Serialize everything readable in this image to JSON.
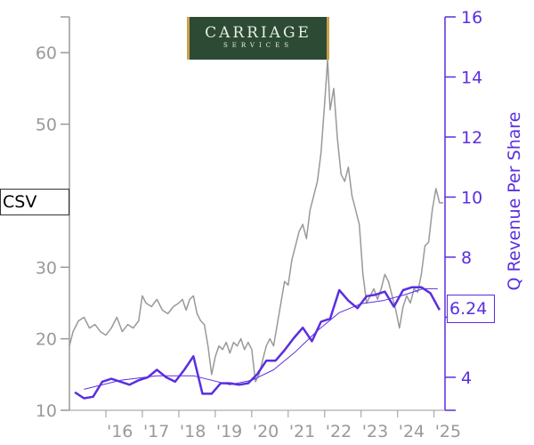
{
  "ticker": "CSV",
  "logo": {
    "main": "CARRIAGE",
    "sub": "SERVICES"
  },
  "last_value_label": "6.24",
  "colors": {
    "price": "#999999",
    "revenue": "#5b2ee0",
    "trend": "#5b2ee0",
    "left_axis": "#999999"
  },
  "chart_data": {
    "type": "line",
    "title": "",
    "left_axis": {
      "label": "",
      "ticks": [
        10,
        20,
        30,
        40,
        50,
        60
      ],
      "tick_labels": [
        "10",
        "20",
        "30",
        "",
        "50",
        "60"
      ],
      "range": [
        10,
        65
      ]
    },
    "right_axis": {
      "label": "Q Revenue Per Share",
      "ticks": [
        4,
        6,
        8,
        10,
        12,
        14,
        16
      ],
      "tick_labels": [
        "4",
        "",
        "8",
        "10",
        "12",
        "14",
        "16"
      ],
      "range": [
        2.9,
        16
      ]
    },
    "x_axis": {
      "tick_labels": [
        "'16",
        "'17",
        "'18",
        "'19",
        "'20",
        "'21",
        "'22",
        "'23",
        "'24",
        "'25"
      ],
      "tick_years": [
        2016,
        2017,
        2018,
        2019,
        2020,
        2021,
        2022,
        2023,
        2024,
        2025
      ],
      "range": [
        2015.0,
        2025.3
      ]
    },
    "series": [
      {
        "name": "Price",
        "axis": "left",
        "x": [
          2015.0,
          2015.1,
          2015.25,
          2015.4,
          2015.55,
          2015.7,
          2015.85,
          2016.0,
          2016.15,
          2016.3,
          2016.45,
          2016.6,
          2016.75,
          2016.9,
          2017.0,
          2017.1,
          2017.25,
          2017.4,
          2017.55,
          2017.7,
          2017.85,
          2018.0,
          2018.1,
          2018.2,
          2018.3,
          2018.4,
          2018.5,
          2018.6,
          2018.7,
          2018.8,
          2018.9,
          2019.0,
          2019.1,
          2019.2,
          2019.3,
          2019.4,
          2019.5,
          2019.6,
          2019.7,
          2019.8,
          2019.9,
          2020.0,
          2020.1,
          2020.2,
          2020.3,
          2020.4,
          2020.5,
          2020.6,
          2020.7,
          2020.8,
          2020.9,
          2021.0,
          2021.1,
          2021.2,
          2021.3,
          2021.4,
          2021.5,
          2021.6,
          2021.7,
          2021.8,
          2021.9,
          2022.0,
          2022.08,
          2022.15,
          2022.25,
          2022.35,
          2022.45,
          2022.55,
          2022.65,
          2022.75,
          2022.85,
          2022.95,
          2023.05,
          2023.15,
          2023.25,
          2023.35,
          2023.45,
          2023.55,
          2023.65,
          2023.75,
          2023.85,
          2023.95,
          2024.05,
          2024.15,
          2024.25,
          2024.35,
          2024.45,
          2024.55,
          2024.65,
          2024.75,
          2024.85,
          2024.95,
          2025.05,
          2025.15,
          2025.25
        ],
        "values": [
          19,
          21,
          22.5,
          23,
          21.5,
          22,
          21,
          20.5,
          21.5,
          23,
          21,
          22,
          21.5,
          22.5,
          26,
          25,
          24.5,
          25.5,
          24,
          23.5,
          24.5,
          25,
          25.5,
          24,
          25.5,
          26,
          23.5,
          22.5,
          22,
          19,
          15,
          17.5,
          19,
          18.5,
          19.5,
          18,
          19.5,
          19,
          20,
          18.5,
          19.5,
          18.5,
          14,
          15,
          17,
          19,
          20,
          19,
          22,
          25,
          28,
          27.5,
          31,
          33,
          35,
          36,
          34,
          38,
          40,
          42,
          46,
          53,
          59,
          52,
          55,
          48,
          43,
          42,
          44,
          40,
          38,
          36,
          29,
          25,
          26,
          27,
          25.5,
          27,
          29,
          28,
          26,
          24,
          21.5,
          24.5,
          26,
          25,
          27,
          26.5,
          29,
          33,
          33.5,
          38,
          41,
          39,
          39
        ]
      },
      {
        "name": "Q Revenue Per Share",
        "axis": "right",
        "x": [
          2015.15,
          2015.4,
          2015.65,
          2015.9,
          2016.15,
          2016.4,
          2016.65,
          2016.9,
          2017.15,
          2017.4,
          2017.65,
          2017.9,
          2018.15,
          2018.4,
          2018.65,
          2018.9,
          2019.15,
          2019.4,
          2019.65,
          2019.9,
          2020.15,
          2020.4,
          2020.65,
          2020.9,
          2021.15,
          2021.4,
          2021.65,
          2021.9,
          2022.15,
          2022.4,
          2022.65,
          2022.9,
          2023.15,
          2023.4,
          2023.65,
          2023.9,
          2024.15,
          2024.4,
          2024.65,
          2024.9,
          2025.15
        ],
        "values": [
          3.5,
          3.3,
          3.35,
          3.85,
          3.95,
          3.85,
          3.75,
          3.9,
          4.0,
          4.25,
          4.0,
          3.85,
          4.25,
          4.7,
          3.45,
          3.45,
          3.8,
          3.8,
          3.75,
          3.8,
          4.1,
          4.55,
          4.55,
          4.9,
          5.3,
          5.65,
          5.2,
          5.85,
          5.95,
          6.9,
          6.55,
          6.3,
          6.7,
          6.75,
          6.85,
          6.35,
          6.9,
          7.0,
          7.0,
          6.8,
          6.24
        ]
      },
      {
        "name": "Trend",
        "axis": "right",
        "x": [
          2015.4,
          2016.4,
          2017.4,
          2018.4,
          2019.4,
          2020.0,
          2020.6,
          2021.2,
          2021.8,
          2022.4,
          2023.0,
          2023.6,
          2024.2,
          2024.7,
          2025.1
        ],
        "values": [
          3.6,
          3.9,
          4.05,
          4.05,
          3.75,
          3.9,
          4.25,
          4.85,
          5.55,
          6.15,
          6.45,
          6.55,
          6.75,
          6.95,
          6.95
        ]
      }
    ]
  }
}
